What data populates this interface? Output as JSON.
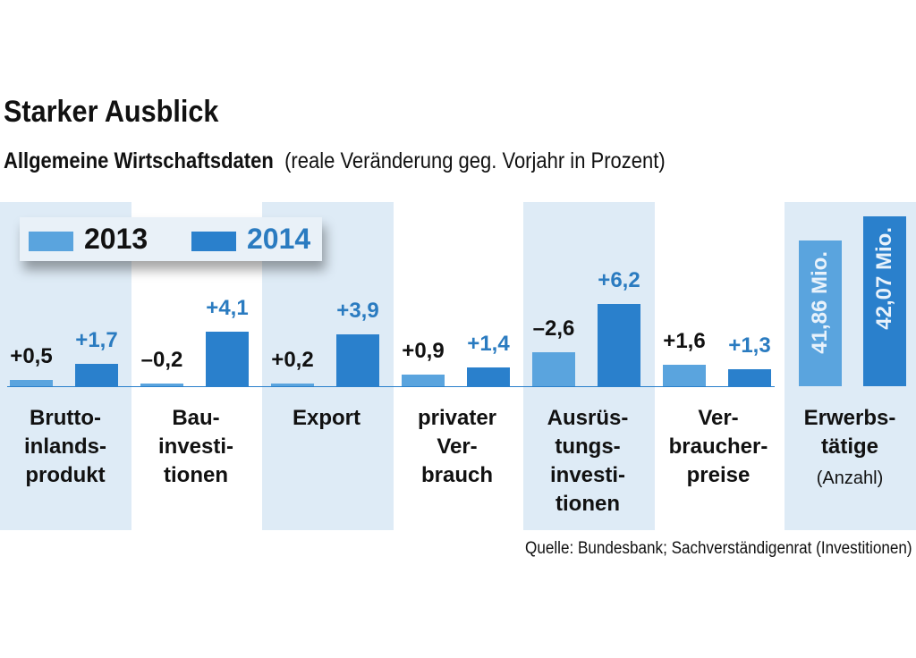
{
  "chart_data": {
    "type": "bar",
    "title": "Starker Ausblick",
    "subtitle_bold": "Allgemeine Wirtschaftsdaten",
    "subtitle": "(reale Veränderung geg. Vorjahr in Prozent)",
    "legend": [
      "2013",
      "2014"
    ],
    "legend_position": "top-left",
    "colors": {
      "2013": "#5aa4de",
      "2014": "#2a80cc",
      "text2014": "#2a7bc0",
      "shade": "#deebf6"
    },
    "categories": [
      "Brutto-\ninlands-\nprodukt",
      "Bau-\ninvesti-\ntionen",
      "Export",
      "privater\nVer-\nbrauch",
      "Ausrüs-\ntungs-\ninvesti-\ntionen",
      "Ver-\nbraucher-\npreise"
    ],
    "series": [
      {
        "name": "2013",
        "values": [
          0.5,
          -0.2,
          0.2,
          0.9,
          -2.6,
          1.6
        ],
        "labels": [
          "+0,5",
          "–0,2",
          "+0,2",
          "+0,9",
          "–2,6",
          "+1,6"
        ]
      },
      {
        "name": "2014",
        "values": [
          1.7,
          4.1,
          3.9,
          1.4,
          6.2,
          1.3
        ],
        "labels": [
          "+1,7",
          "+4,1",
          "+3,9",
          "+1,4",
          "+6,2",
          "+1,3"
        ]
      }
    ],
    "employment": {
      "category": "Erwerbs-\ntätige",
      "sublabel": "(Anzahl)",
      "values": [
        41.86,
        42.07
      ],
      "labels": [
        "41,86 Mio.",
        "42,07 Mio."
      ]
    },
    "source": "Quelle: Bundesbank; Sachverständigenrat (Investitionen)"
  }
}
